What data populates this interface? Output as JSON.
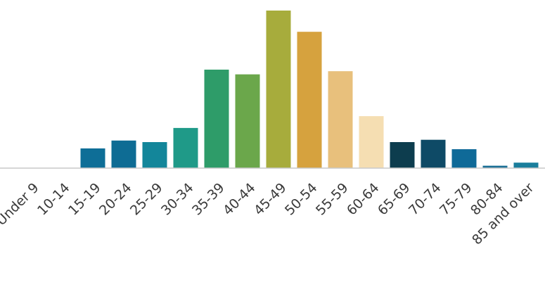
{
  "chart_data": {
    "type": "bar",
    "categories": [
      "Under 9",
      "10-14",
      "15-19",
      "20-24",
      "25-29",
      "30-34",
      "35-39",
      "40-44",
      "45-49",
      "50-54",
      "55-59",
      "60-64",
      "65-69",
      "70-74",
      "75-79",
      "80-84",
      "85 and over"
    ],
    "values": [
      0,
      0,
      2.5,
      3.5,
      3.3,
      5.1,
      12.5,
      11.9,
      20.0,
      17.3,
      12.3,
      6.6,
      3.3,
      3.6,
      2.4,
      0.3,
      0.7
    ],
    "colors": [
      "#1a6f95",
      "#1a6f95",
      "#0e6e97",
      "#0e6c94",
      "#13869a",
      "#1f9a88",
      "#2e9c69",
      "#6ba74b",
      "#a7ac3c",
      "#d6a23e",
      "#e8c07c",
      "#f5deb2",
      "#0d3d4e",
      "#0e4a66",
      "#0f6a98",
      "#1a6f95",
      "#1a7e9c"
    ],
    "ylim": [
      0,
      20
    ],
    "grid": false,
    "legend": "none"
  }
}
